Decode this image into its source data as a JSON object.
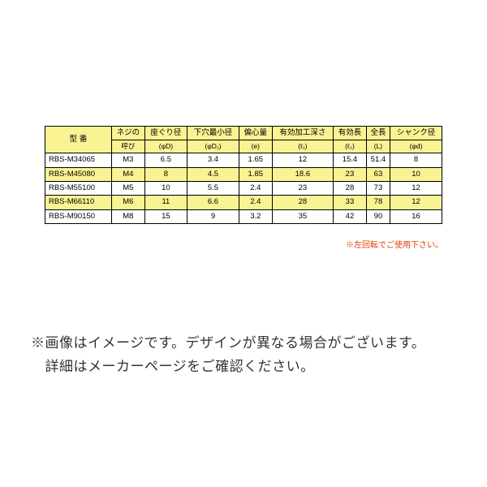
{
  "table": {
    "type": "table",
    "header_bg": "#faf393",
    "border_color": "#000000",
    "highlight_bg": "#faf393",
    "text_color": "#000000",
    "font_size_pt": 9.5,
    "sub_font_size_pt": 8.5,
    "columns": [
      {
        "key": "model",
        "label_top": "型  番",
        "label_sub": "",
        "width": 82
      },
      {
        "key": "thread",
        "label_top": "ネジの",
        "label_sub": "呼び"
      },
      {
        "key": "seat",
        "label_top": "座ぐり径",
        "label_sub": "(φD)"
      },
      {
        "key": "minhole",
        "label_top": "下穴最小径",
        "label_sub": "(φD₁)"
      },
      {
        "key": "ecc",
        "label_top": "偏心量",
        "label_sub": "(e)"
      },
      {
        "key": "depth",
        "label_top": "有効加工深さ",
        "label_sub": "(ℓ₁)"
      },
      {
        "key": "efflen",
        "label_top": "有効長",
        "label_sub": "(ℓ₂)"
      },
      {
        "key": "total",
        "label_top": "全長",
        "label_sub": "(L)"
      },
      {
        "key": "shank",
        "label_top": "シャンク径",
        "label_sub": "(φd)"
      }
    ],
    "rows": [
      {
        "hl": false,
        "cells": [
          "RBS-M34065",
          "M3",
          "6.5",
          "3.4",
          "1.65",
          "12",
          "15.4",
          "51.4",
          "8"
        ]
      },
      {
        "hl": true,
        "cells": [
          "RBS-M45080",
          "M4",
          "8",
          "4.5",
          "1.85",
          "18.6",
          "23",
          "63",
          "10"
        ]
      },
      {
        "hl": false,
        "cells": [
          "RBS-M55100",
          "M5",
          "10",
          "5.5",
          "2.4",
          "23",
          "28",
          "73",
          "12"
        ]
      },
      {
        "hl": true,
        "cells": [
          "RBS-M66110",
          "M6",
          "11",
          "6.6",
          "2.4",
          "28",
          "33",
          "78",
          "12"
        ]
      },
      {
        "hl": false,
        "cells": [
          "RBS-M90150",
          "M8",
          "15",
          "9",
          "3.2",
          "35",
          "42",
          "90",
          "16"
        ]
      }
    ]
  },
  "footnote": {
    "text": "※左回転でご使用下さい。",
    "color": "#e63900",
    "font_size_pt": 10
  },
  "caption": {
    "line1": "※画像はイメージです。デザインが異なる場合がございます。",
    "line2": "　詳細はメーカーページをご確認ください。",
    "color": "#333333",
    "font_size_pt": 17
  }
}
